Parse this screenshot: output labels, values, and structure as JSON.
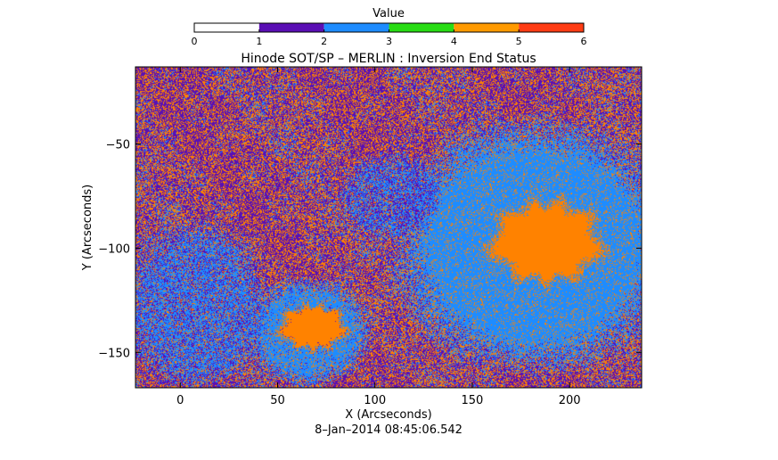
{
  "chart_data": {
    "type": "heatmap",
    "title": "Hinode SOT/SP – MERLIN : Inversion End Status",
    "xlabel": "X (Arcseconds)",
    "ylabel": "Y (Arcseconds)",
    "timestamp": "8–Jan–2014  08:45:06.542",
    "xlim": [
      -23,
      237
    ],
    "ylim": [
      -167,
      -13
    ],
    "x_ticks": [
      0,
      50,
      100,
      150,
      200
    ],
    "y_ticks": [
      -50,
      -100,
      -150
    ],
    "colorbar": {
      "title": "Value",
      "range": [
        0,
        6
      ],
      "ticks": [
        0,
        1,
        2,
        3,
        4,
        5,
        6
      ],
      "bins": [
        {
          "from": 0,
          "to": 1,
          "color": "#ffffff"
        },
        {
          "from": 1,
          "to": 2,
          "color": "#5a0fb4"
        },
        {
          "from": 2,
          "to": 3,
          "color": "#1e8cff"
        },
        {
          "from": 3,
          "to": 4,
          "color": "#28dc14"
        },
        {
          "from": 4,
          "to": 5,
          "color": "#ff9a00"
        },
        {
          "from": 5,
          "to": 6,
          "color": "#ff3c14"
        },
        {
          "from": 6,
          "to": 6,
          "color": "#ff3c14"
        }
      ]
    },
    "value_colors": {
      "1": "#5a0fb4",
      "2": "#1e8cff",
      "4": "#ff8200"
    },
    "features": [
      {
        "name": "large-sunspot-umbra",
        "center": [
          188,
          -97
        ],
        "radius": [
          22,
          15
        ],
        "value": 4
      },
      {
        "name": "large-sunspot-penumbra",
        "center": [
          182,
          -99
        ],
        "radius": [
          62,
          52
        ],
        "value": 2
      },
      {
        "name": "small-sunspot-umbra",
        "center": [
          68,
          -138
        ],
        "radius": [
          13,
          8
        ],
        "value": 4
      },
      {
        "name": "small-sunspot-penumbra",
        "center": [
          66,
          -140
        ],
        "radius": [
          28,
          22
        ],
        "value": 2
      },
      {
        "name": "plage-southwest",
        "center": [
          8,
          -128
        ],
        "radius": [
          32,
          35
        ],
        "value": 2
      },
      {
        "name": "plage-central",
        "center": [
          108,
          -75
        ],
        "radius": [
          22,
          18
        ],
        "value": 2
      }
    ]
  }
}
